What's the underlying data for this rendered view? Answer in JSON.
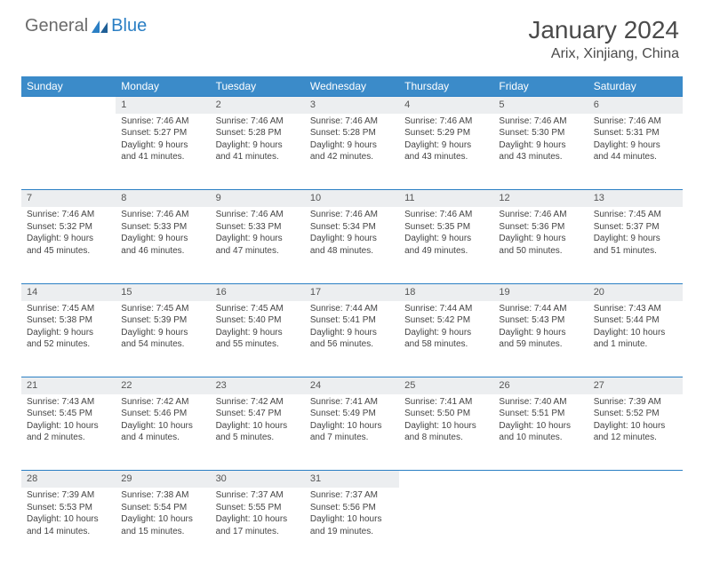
{
  "brand": {
    "part1": "General",
    "part2": "Blue"
  },
  "title": "January 2024",
  "location": "Arix, Xinjiang, China",
  "header_color": "#3b8bc9",
  "accent_color": "#2b7fc4",
  "daynum_bg": "#eceef0",
  "weekdays": [
    "Sunday",
    "Monday",
    "Tuesday",
    "Wednesday",
    "Thursday",
    "Friday",
    "Saturday"
  ],
  "weeks": [
    [
      null,
      {
        "n": "1",
        "sr": "Sunrise: 7:46 AM",
        "ss": "Sunset: 5:27 PM",
        "d1": "Daylight: 9 hours",
        "d2": "and 41 minutes."
      },
      {
        "n": "2",
        "sr": "Sunrise: 7:46 AM",
        "ss": "Sunset: 5:28 PM",
        "d1": "Daylight: 9 hours",
        "d2": "and 41 minutes."
      },
      {
        "n": "3",
        "sr": "Sunrise: 7:46 AM",
        "ss": "Sunset: 5:28 PM",
        "d1": "Daylight: 9 hours",
        "d2": "and 42 minutes."
      },
      {
        "n": "4",
        "sr": "Sunrise: 7:46 AM",
        "ss": "Sunset: 5:29 PM",
        "d1": "Daylight: 9 hours",
        "d2": "and 43 minutes."
      },
      {
        "n": "5",
        "sr": "Sunrise: 7:46 AM",
        "ss": "Sunset: 5:30 PM",
        "d1": "Daylight: 9 hours",
        "d2": "and 43 minutes."
      },
      {
        "n": "6",
        "sr": "Sunrise: 7:46 AM",
        "ss": "Sunset: 5:31 PM",
        "d1": "Daylight: 9 hours",
        "d2": "and 44 minutes."
      }
    ],
    [
      {
        "n": "7",
        "sr": "Sunrise: 7:46 AM",
        "ss": "Sunset: 5:32 PM",
        "d1": "Daylight: 9 hours",
        "d2": "and 45 minutes."
      },
      {
        "n": "8",
        "sr": "Sunrise: 7:46 AM",
        "ss": "Sunset: 5:33 PM",
        "d1": "Daylight: 9 hours",
        "d2": "and 46 minutes."
      },
      {
        "n": "9",
        "sr": "Sunrise: 7:46 AM",
        "ss": "Sunset: 5:33 PM",
        "d1": "Daylight: 9 hours",
        "d2": "and 47 minutes."
      },
      {
        "n": "10",
        "sr": "Sunrise: 7:46 AM",
        "ss": "Sunset: 5:34 PM",
        "d1": "Daylight: 9 hours",
        "d2": "and 48 minutes."
      },
      {
        "n": "11",
        "sr": "Sunrise: 7:46 AM",
        "ss": "Sunset: 5:35 PM",
        "d1": "Daylight: 9 hours",
        "d2": "and 49 minutes."
      },
      {
        "n": "12",
        "sr": "Sunrise: 7:46 AM",
        "ss": "Sunset: 5:36 PM",
        "d1": "Daylight: 9 hours",
        "d2": "and 50 minutes."
      },
      {
        "n": "13",
        "sr": "Sunrise: 7:45 AM",
        "ss": "Sunset: 5:37 PM",
        "d1": "Daylight: 9 hours",
        "d2": "and 51 minutes."
      }
    ],
    [
      {
        "n": "14",
        "sr": "Sunrise: 7:45 AM",
        "ss": "Sunset: 5:38 PM",
        "d1": "Daylight: 9 hours",
        "d2": "and 52 minutes."
      },
      {
        "n": "15",
        "sr": "Sunrise: 7:45 AM",
        "ss": "Sunset: 5:39 PM",
        "d1": "Daylight: 9 hours",
        "d2": "and 54 minutes."
      },
      {
        "n": "16",
        "sr": "Sunrise: 7:45 AM",
        "ss": "Sunset: 5:40 PM",
        "d1": "Daylight: 9 hours",
        "d2": "and 55 minutes."
      },
      {
        "n": "17",
        "sr": "Sunrise: 7:44 AM",
        "ss": "Sunset: 5:41 PM",
        "d1": "Daylight: 9 hours",
        "d2": "and 56 minutes."
      },
      {
        "n": "18",
        "sr": "Sunrise: 7:44 AM",
        "ss": "Sunset: 5:42 PM",
        "d1": "Daylight: 9 hours",
        "d2": "and 58 minutes."
      },
      {
        "n": "19",
        "sr": "Sunrise: 7:44 AM",
        "ss": "Sunset: 5:43 PM",
        "d1": "Daylight: 9 hours",
        "d2": "and 59 minutes."
      },
      {
        "n": "20",
        "sr": "Sunrise: 7:43 AM",
        "ss": "Sunset: 5:44 PM",
        "d1": "Daylight: 10 hours",
        "d2": "and 1 minute."
      }
    ],
    [
      {
        "n": "21",
        "sr": "Sunrise: 7:43 AM",
        "ss": "Sunset: 5:45 PM",
        "d1": "Daylight: 10 hours",
        "d2": "and 2 minutes."
      },
      {
        "n": "22",
        "sr": "Sunrise: 7:42 AM",
        "ss": "Sunset: 5:46 PM",
        "d1": "Daylight: 10 hours",
        "d2": "and 4 minutes."
      },
      {
        "n": "23",
        "sr": "Sunrise: 7:42 AM",
        "ss": "Sunset: 5:47 PM",
        "d1": "Daylight: 10 hours",
        "d2": "and 5 minutes."
      },
      {
        "n": "24",
        "sr": "Sunrise: 7:41 AM",
        "ss": "Sunset: 5:49 PM",
        "d1": "Daylight: 10 hours",
        "d2": "and 7 minutes."
      },
      {
        "n": "25",
        "sr": "Sunrise: 7:41 AM",
        "ss": "Sunset: 5:50 PM",
        "d1": "Daylight: 10 hours",
        "d2": "and 8 minutes."
      },
      {
        "n": "26",
        "sr": "Sunrise: 7:40 AM",
        "ss": "Sunset: 5:51 PM",
        "d1": "Daylight: 10 hours",
        "d2": "and 10 minutes."
      },
      {
        "n": "27",
        "sr": "Sunrise: 7:39 AM",
        "ss": "Sunset: 5:52 PM",
        "d1": "Daylight: 10 hours",
        "d2": "and 12 minutes."
      }
    ],
    [
      {
        "n": "28",
        "sr": "Sunrise: 7:39 AM",
        "ss": "Sunset: 5:53 PM",
        "d1": "Daylight: 10 hours",
        "d2": "and 14 minutes."
      },
      {
        "n": "29",
        "sr": "Sunrise: 7:38 AM",
        "ss": "Sunset: 5:54 PM",
        "d1": "Daylight: 10 hours",
        "d2": "and 15 minutes."
      },
      {
        "n": "30",
        "sr": "Sunrise: 7:37 AM",
        "ss": "Sunset: 5:55 PM",
        "d1": "Daylight: 10 hours",
        "d2": "and 17 minutes."
      },
      {
        "n": "31",
        "sr": "Sunrise: 7:37 AM",
        "ss": "Sunset: 5:56 PM",
        "d1": "Daylight: 10 hours",
        "d2": "and 19 minutes."
      },
      null,
      null,
      null
    ]
  ]
}
